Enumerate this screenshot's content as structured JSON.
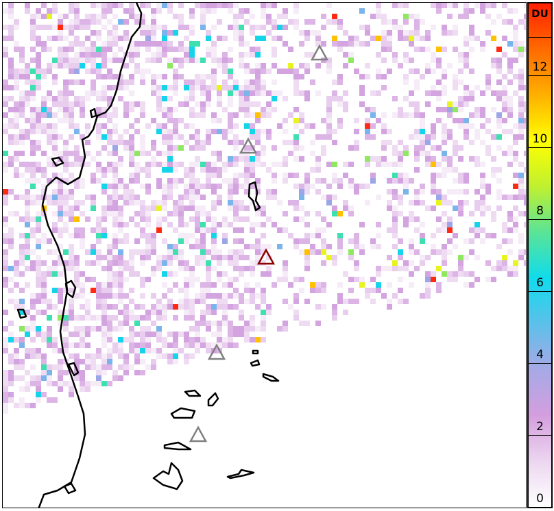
{
  "colorbar": {
    "unit": "DU",
    "min": 0,
    "max": 14,
    "ticks": [
      "0",
      "2",
      "4",
      "6",
      "8",
      "10",
      "12"
    ],
    "colors": [
      "#ffffff",
      "#ecd6f0",
      "#d49ede",
      "#a7a9e6",
      "#5cc0ea",
      "#10dcec",
      "#5ae496",
      "#c0f030",
      "#ffff00",
      "#ffb000",
      "#ff6a00",
      "#ff2000"
    ]
  },
  "markers": [
    {
      "type": "volcano",
      "color": "#808080"
    },
    {
      "type": "volcano",
      "color": "#808080"
    },
    {
      "type": "volcano",
      "color": "#8b0000"
    },
    {
      "type": "volcano",
      "color": "#808080"
    },
    {
      "type": "volcano",
      "color": "#808080"
    }
  ]
}
